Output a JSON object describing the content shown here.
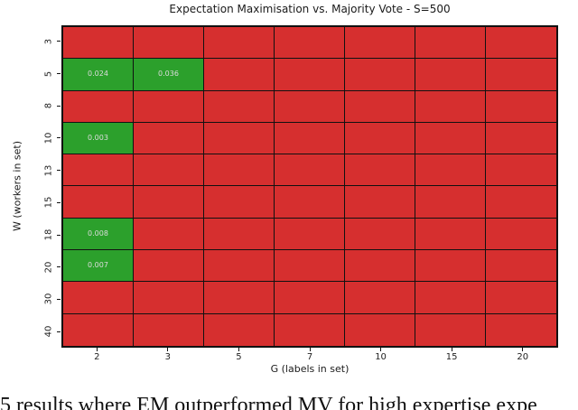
{
  "caption": "5 results where EM outperformed MV for high expertise expe",
  "chart_data": {
    "type": "heatmap",
    "title": "Expectation Maximisation vs. Majority Vote - S=500",
    "xlabel": "G (labels in set)",
    "ylabel": "W (workers in set)",
    "x_categories": [
      "2",
      "3",
      "5",
      "7",
      "10",
      "15",
      "20"
    ],
    "y_categories": [
      "3",
      "5",
      "8",
      "10",
      "13",
      "15",
      "18",
      "20",
      "30",
      "40"
    ],
    "values": [
      [
        null,
        null,
        null,
        null,
        null,
        null,
        null
      ],
      [
        "0.024",
        "0.036",
        null,
        null,
        null,
        null,
        null
      ],
      [
        null,
        null,
        null,
        null,
        null,
        null,
        null
      ],
      [
        "0.003",
        null,
        null,
        null,
        null,
        null,
        null
      ],
      [
        null,
        null,
        null,
        null,
        null,
        null,
        null
      ],
      [
        null,
        null,
        null,
        null,
        null,
        null,
        null
      ],
      [
        "0.008",
        null,
        null,
        null,
        null,
        null,
        null
      ],
      [
        "0.007",
        null,
        null,
        null,
        null,
        null,
        null
      ],
      [
        null,
        null,
        null,
        null,
        null,
        null,
        null
      ],
      [
        null,
        null,
        null,
        null,
        null,
        null,
        null
      ]
    ],
    "colors": {
      "red": "#d62f2f",
      "green": "#2ca02c",
      "grid": "#111111",
      "cell_text": "#dcdcdc"
    },
    "legend": "none",
    "grid": "on"
  }
}
